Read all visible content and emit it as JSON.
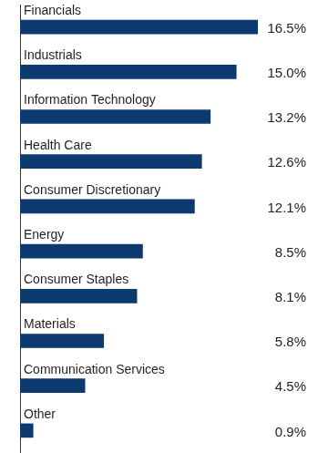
{
  "chart_data": {
    "type": "bar",
    "orientation": "horizontal",
    "categories": [
      "Financials",
      "Industrials",
      "Information Technology",
      "Health Care",
      "Consumer Discretionary",
      "Energy",
      "Consumer Staples",
      "Materials",
      "Communication Services",
      "Other"
    ],
    "values": [
      16.5,
      15.0,
      13.2,
      12.6,
      12.1,
      8.5,
      8.1,
      5.8,
      4.5,
      0.9
    ],
    "value_labels": [
      "16.5%",
      "15.0%",
      "13.2%",
      "12.6%",
      "12.1%",
      "8.5%",
      "8.1%",
      "5.8%",
      "4.5%",
      "0.9%"
    ],
    "color": "#0c3a6e",
    "xlim": [
      0,
      16.5
    ],
    "grid": false,
    "data_labels": true,
    "tick_labels": false
  }
}
